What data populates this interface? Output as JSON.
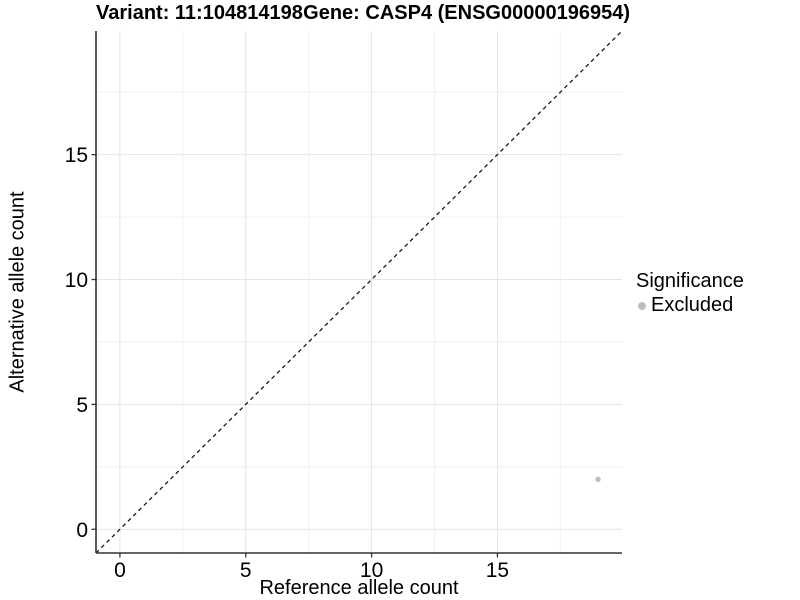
{
  "titles": {
    "variant": "Variant: 11:104814198",
    "gene": "Gene: CASP4 (ENSG00000196954)"
  },
  "chart_data": {
    "type": "scatter",
    "title_left": "Variant: 11:104814198",
    "title_right": "Gene: CASP4 (ENSG00000196954)",
    "xlabel": "Reference allele count",
    "ylabel": "Alternative allele count",
    "xlim": [
      -0.95,
      19.95
    ],
    "ylim": [
      -0.95,
      19.95
    ],
    "xticks": [
      0,
      5,
      10,
      15
    ],
    "yticks": [
      0,
      5,
      10,
      15
    ],
    "xticks_minor": [
      2.5,
      7.5,
      12.5,
      17.5
    ],
    "yticks_minor": [
      2.5,
      7.5,
      12.5,
      17.5
    ],
    "grid": "major+minor",
    "reference_line": {
      "type": "identity y=x",
      "style": "dashed",
      "color": "#1a1a1a"
    },
    "series": [
      {
        "name": "Excluded",
        "color": "#bebebe",
        "points": [
          {
            "x": 19,
            "y": 2
          }
        ]
      }
    ],
    "legend": {
      "title": "Significance",
      "position": "right",
      "items": [
        {
          "label": "Excluded",
          "color": "#bebebe",
          "marker": "circle"
        }
      ]
    }
  },
  "colors": {
    "background": "#ffffff",
    "grid_major": "#e5e5e5",
    "grid_minor": "#f1f1f1",
    "axis_line": "#333333",
    "tick_mark": "#333333",
    "text": "#000000",
    "point": "#bebebe"
  }
}
